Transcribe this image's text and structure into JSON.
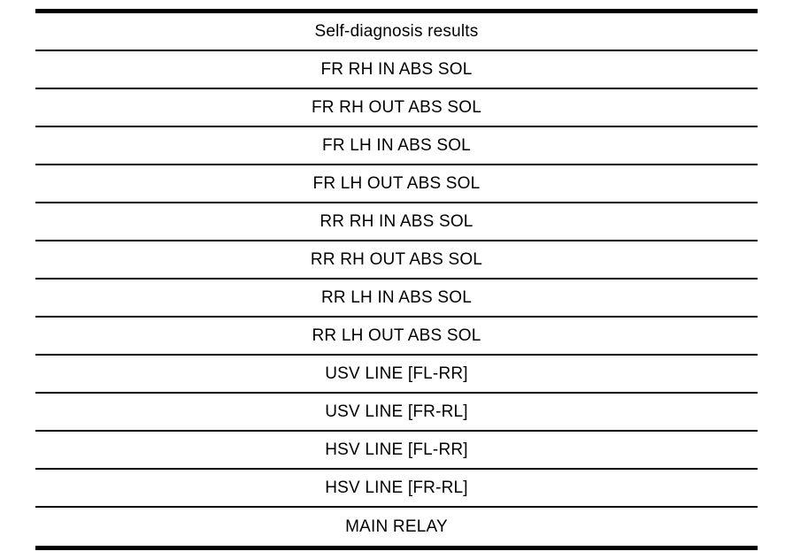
{
  "table": {
    "header": "Self-diagnosis results",
    "rows": [
      "FR RH IN ABS SOL",
      "FR RH OUT ABS SOL",
      "FR LH IN ABS SOL",
      "FR LH OUT ABS SOL",
      "RR RH IN ABS SOL",
      "RR RH OUT ABS SOL",
      "RR LH IN ABS SOL",
      "RR LH OUT ABS SOL",
      "USV LINE [FL-RR]",
      "USV LINE [FR-RL]",
      "HSV LINE [FL-RR]",
      "HSV LINE [FR-RL]",
      "MAIN RELAY"
    ]
  },
  "colors": {
    "background": "#ffffff",
    "border": "#000000",
    "text": "#000000"
  }
}
